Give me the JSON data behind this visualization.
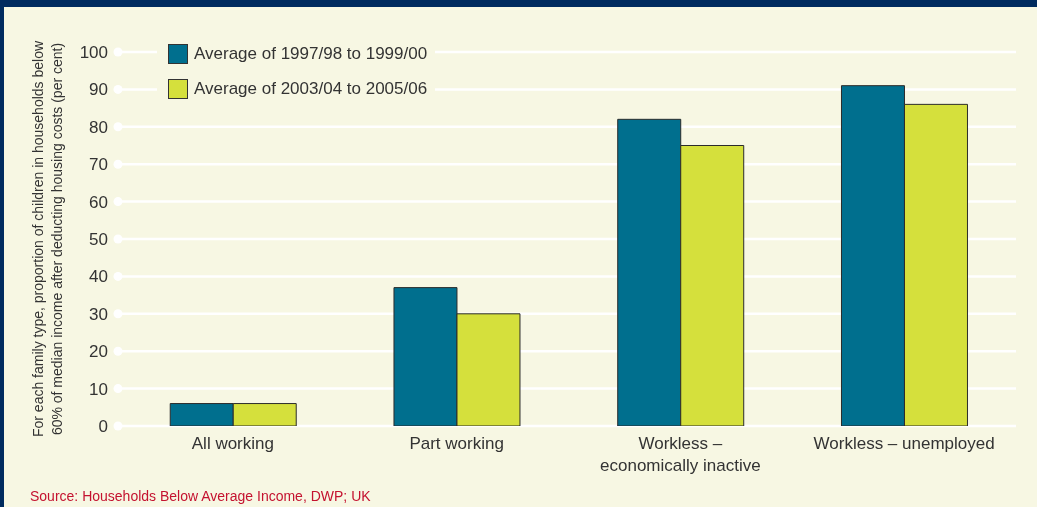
{
  "chart_data": {
    "type": "bar",
    "ylabel": "For each family type, proportion of children in households below 60% of median income after deducting housing costs (per cent)",
    "categories": [
      "All working",
      "Part working",
      "Workless – economically inactive",
      "Workless – unemployed"
    ],
    "series": [
      {
        "name": "Average of 1997/98 to 1999/00",
        "color": "#006f8e",
        "values": [
          6,
          37,
          82,
          91
        ]
      },
      {
        "name": "Average of 2003/04 to 2005/06",
        "color": "#d5e03c",
        "values": [
          6,
          30,
          75,
          86
        ]
      }
    ],
    "ylim": [
      0,
      100
    ],
    "yticks": [
      0,
      10,
      20,
      30,
      40,
      50,
      60,
      70,
      80,
      90,
      100
    ],
    "grid": "y",
    "legend": "top left",
    "annotations": [
      "Source: Households Below Average Income, DWP; UK"
    ]
  }
}
